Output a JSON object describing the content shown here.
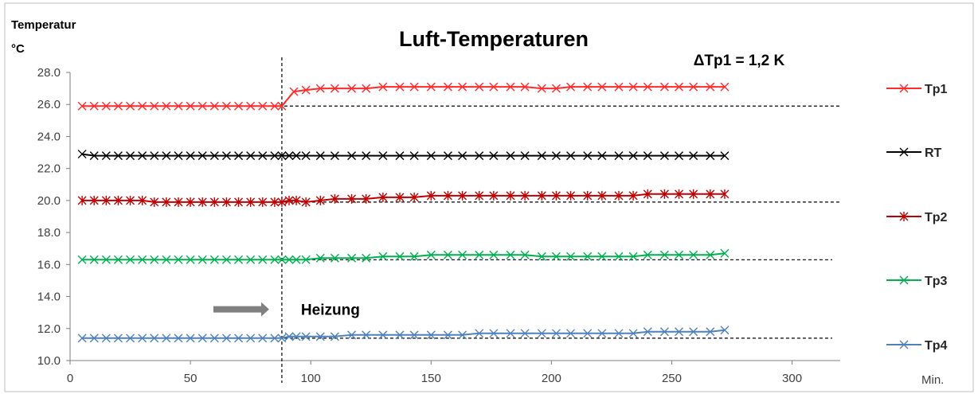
{
  "chart_data": {
    "type": "line",
    "title": "Luft-Temperaturen",
    "ylabel_line1": "Temperatur",
    "ylabel_line2": "°C",
    "xlabel": "Min.",
    "xlim": [
      0,
      320
    ],
    "ylim": [
      10,
      28
    ],
    "xticks": [
      "0",
      "50",
      "100",
      "150",
      "200",
      "250",
      "300"
    ],
    "yticks": [
      "10.0",
      "12.0",
      "14.0",
      "16.0",
      "18.0",
      "20.0",
      "22.0",
      "24.0",
      "26.0",
      "28.0"
    ],
    "grid": false,
    "legend": "right",
    "event_x": 88,
    "annotation_delta": "ΔTp1 = 1,2 K",
    "annotation_event": "Heizung",
    "series": [
      {
        "name": "Tp1",
        "color": "#ff2a2a",
        "marker": "x",
        "baseline": 25.9,
        "x": [
          5,
          10,
          15,
          20,
          25,
          30,
          35,
          40,
          45,
          50,
          55,
          60,
          65,
          70,
          75,
          80,
          85,
          88,
          93,
          98,
          104,
          110,
          117,
          123,
          130,
          137,
          143,
          150,
          157,
          163,
          170,
          176,
          183,
          189,
          196,
          202,
          208,
          215,
          221,
          228,
          234,
          240,
          247,
          253,
          259,
          266,
          272
        ],
        "y": [
          25.9,
          25.9,
          25.9,
          25.9,
          25.9,
          25.9,
          25.9,
          25.9,
          25.9,
          25.9,
          25.9,
          25.9,
          25.9,
          25.9,
          25.9,
          25.9,
          25.9,
          25.9,
          26.8,
          26.9,
          27.0,
          27.0,
          27.0,
          27.0,
          27.1,
          27.1,
          27.1,
          27.1,
          27.1,
          27.1,
          27.1,
          27.1,
          27.1,
          27.1,
          27.0,
          27.0,
          27.1,
          27.1,
          27.1,
          27.1,
          27.1,
          27.1,
          27.1,
          27.1,
          27.1,
          27.1,
          27.1
        ]
      },
      {
        "name": "RT",
        "color": "#000000",
        "marker": "x",
        "baseline": null,
        "x": [
          5,
          10,
          15,
          20,
          25,
          30,
          35,
          40,
          45,
          50,
          55,
          60,
          65,
          70,
          75,
          80,
          85,
          88,
          91,
          94,
          98,
          104,
          110,
          117,
          123,
          130,
          137,
          143,
          150,
          157,
          163,
          170,
          176,
          183,
          189,
          196,
          202,
          208,
          215,
          221,
          228,
          234,
          240,
          247,
          253,
          259,
          266,
          272
        ],
        "y": [
          22.9,
          22.8,
          22.8,
          22.8,
          22.8,
          22.8,
          22.8,
          22.8,
          22.8,
          22.8,
          22.8,
          22.8,
          22.8,
          22.8,
          22.8,
          22.8,
          22.8,
          22.8,
          22.8,
          22.8,
          22.8,
          22.8,
          22.8,
          22.8,
          22.8,
          22.8,
          22.8,
          22.8,
          22.8,
          22.8,
          22.8,
          22.8,
          22.8,
          22.8,
          22.8,
          22.8,
          22.8,
          22.8,
          22.8,
          22.8,
          22.8,
          22.8,
          22.8,
          22.8,
          22.8,
          22.8,
          22.8,
          22.8
        ]
      },
      {
        "name": "Tp2",
        "color": "#c00000",
        "marker": "star",
        "baseline": 19.9,
        "x": [
          5,
          10,
          15,
          20,
          25,
          30,
          35,
          40,
          45,
          50,
          55,
          60,
          65,
          70,
          75,
          80,
          85,
          88,
          91,
          94,
          98,
          104,
          110,
          117,
          123,
          130,
          137,
          143,
          150,
          157,
          163,
          170,
          176,
          183,
          189,
          196,
          202,
          208,
          215,
          221,
          228,
          234,
          240,
          247,
          253,
          259,
          266,
          272
        ],
        "y": [
          20.0,
          20.0,
          20.0,
          20.0,
          20.0,
          20.0,
          19.9,
          19.9,
          19.9,
          19.9,
          19.9,
          19.9,
          19.9,
          19.9,
          19.9,
          19.9,
          19.9,
          19.9,
          20.0,
          20.0,
          19.9,
          20.0,
          20.1,
          20.1,
          20.1,
          20.2,
          20.2,
          20.2,
          20.3,
          20.3,
          20.3,
          20.3,
          20.3,
          20.3,
          20.3,
          20.3,
          20.3,
          20.3,
          20.3,
          20.3,
          20.3,
          20.3,
          20.4,
          20.4,
          20.4,
          20.4,
          20.4,
          20.4
        ]
      },
      {
        "name": "Tp3",
        "color": "#00b050",
        "marker": "x",
        "baseline": 16.3,
        "x": [
          5,
          10,
          15,
          20,
          25,
          30,
          35,
          40,
          45,
          50,
          55,
          60,
          65,
          70,
          75,
          80,
          85,
          88,
          91,
          94,
          98,
          104,
          110,
          117,
          123,
          130,
          137,
          143,
          150,
          157,
          163,
          170,
          176,
          183,
          189,
          196,
          202,
          208,
          215,
          221,
          228,
          234,
          240,
          247,
          253,
          259,
          266,
          272
        ],
        "y": [
          16.3,
          16.3,
          16.3,
          16.3,
          16.3,
          16.3,
          16.3,
          16.3,
          16.3,
          16.3,
          16.3,
          16.3,
          16.3,
          16.3,
          16.3,
          16.3,
          16.3,
          16.3,
          16.3,
          16.3,
          16.3,
          16.4,
          16.4,
          16.4,
          16.4,
          16.5,
          16.5,
          16.5,
          16.6,
          16.6,
          16.6,
          16.6,
          16.6,
          16.6,
          16.6,
          16.5,
          16.5,
          16.5,
          16.5,
          16.5,
          16.5,
          16.5,
          16.6,
          16.6,
          16.6,
          16.6,
          16.6,
          16.7
        ]
      },
      {
        "name": "Tp4",
        "color": "#4f81bd",
        "marker": "x",
        "baseline": 11.4,
        "x": [
          5,
          10,
          15,
          20,
          25,
          30,
          35,
          40,
          45,
          50,
          55,
          60,
          65,
          70,
          75,
          80,
          85,
          88,
          91,
          94,
          98,
          104,
          110,
          117,
          123,
          130,
          137,
          143,
          150,
          157,
          163,
          170,
          176,
          183,
          189,
          196,
          202,
          208,
          215,
          221,
          228,
          234,
          240,
          247,
          253,
          259,
          266,
          272
        ],
        "y": [
          11.4,
          11.4,
          11.4,
          11.4,
          11.4,
          11.4,
          11.4,
          11.4,
          11.4,
          11.4,
          11.4,
          11.4,
          11.4,
          11.4,
          11.4,
          11.4,
          11.4,
          11.4,
          11.5,
          11.5,
          11.5,
          11.5,
          11.5,
          11.6,
          11.6,
          11.6,
          11.6,
          11.6,
          11.6,
          11.6,
          11.6,
          11.7,
          11.7,
          11.7,
          11.7,
          11.7,
          11.7,
          11.7,
          11.7,
          11.7,
          11.7,
          11.7,
          11.8,
          11.8,
          11.8,
          11.8,
          11.8,
          11.9
        ]
      }
    ]
  }
}
